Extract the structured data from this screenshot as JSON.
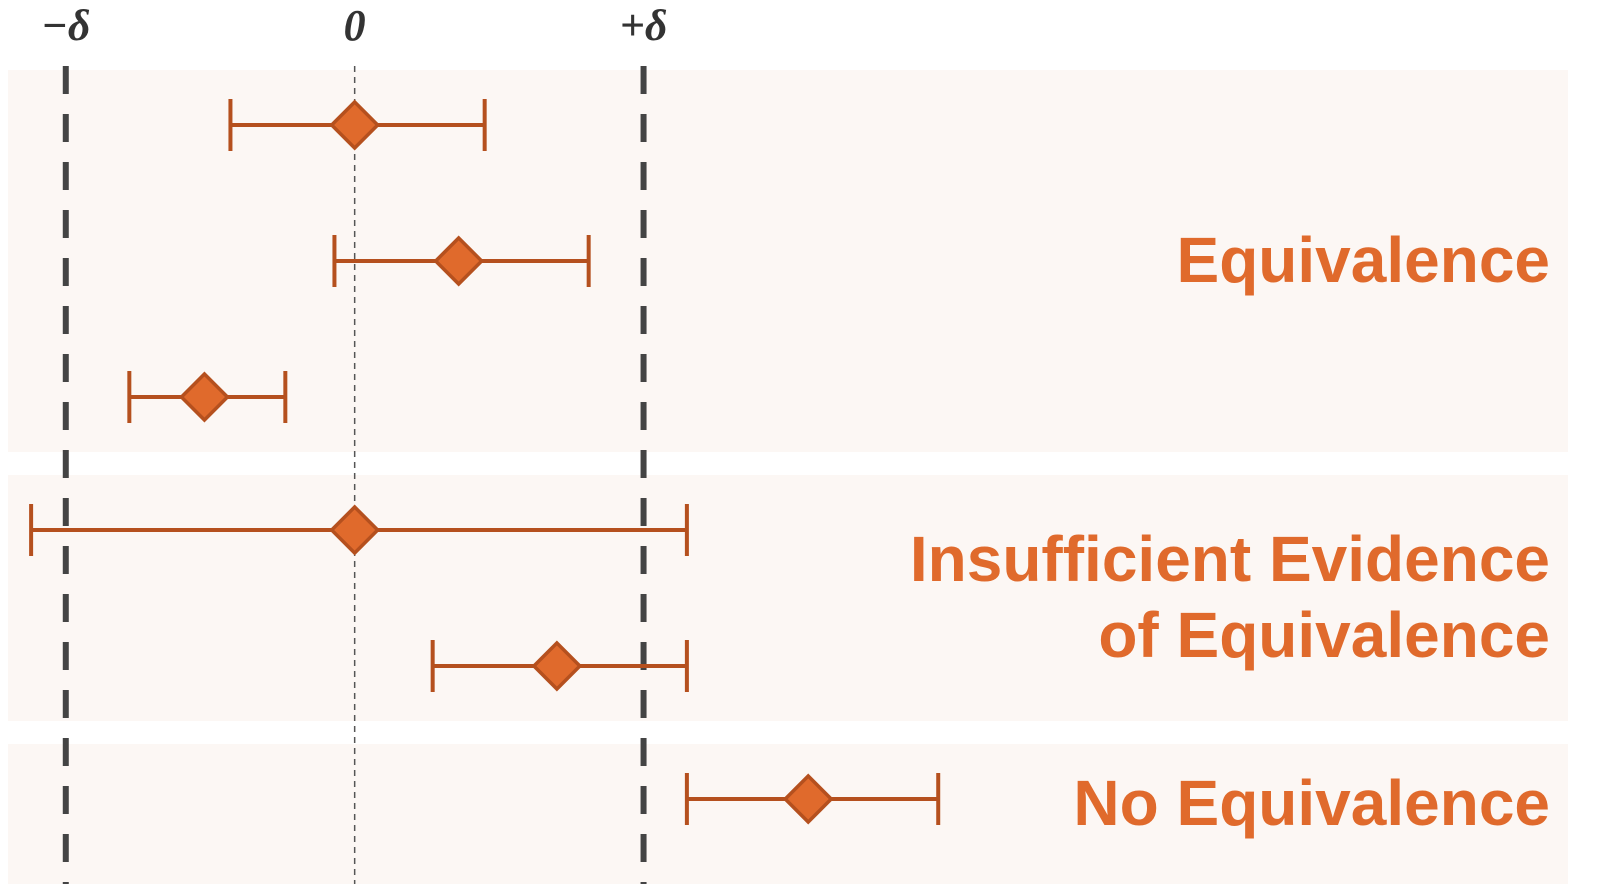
{
  "chart_data": {
    "type": "interval",
    "xlim": [
      -1.2,
      4.2
    ],
    "xticks": [
      {
        "value": -1,
        "label": "−δ"
      },
      0,
      {
        "value": 1,
        "label": "+δ"
      }
    ],
    "marker_color": "#e06a2c",
    "line_color": "#b5501e",
    "label_color": "#e06a2c",
    "groups": [
      {
        "label": [
          "Equivalence"
        ],
        "estimates": [
          0,
          0.36,
          -0.52
        ],
        "lower": [
          -0.43,
          -0.07,
          -0.78
        ],
        "upper": [
          0.45,
          0.81,
          -0.24
        ]
      },
      {
        "label": [
          "Insufficient Evidence",
          "of Equivalence"
        ],
        "estimates": [
          0,
          0.7
        ],
        "lower": [
          -1.12,
          0.27
        ],
        "upper": [
          1.15,
          1.15
        ]
      },
      {
        "label": [
          "No Equivalence"
        ],
        "estimates": [
          1.57
        ],
        "lower": [
          1.15
        ],
        "upper": [
          2.02
        ]
      }
    ]
  }
}
